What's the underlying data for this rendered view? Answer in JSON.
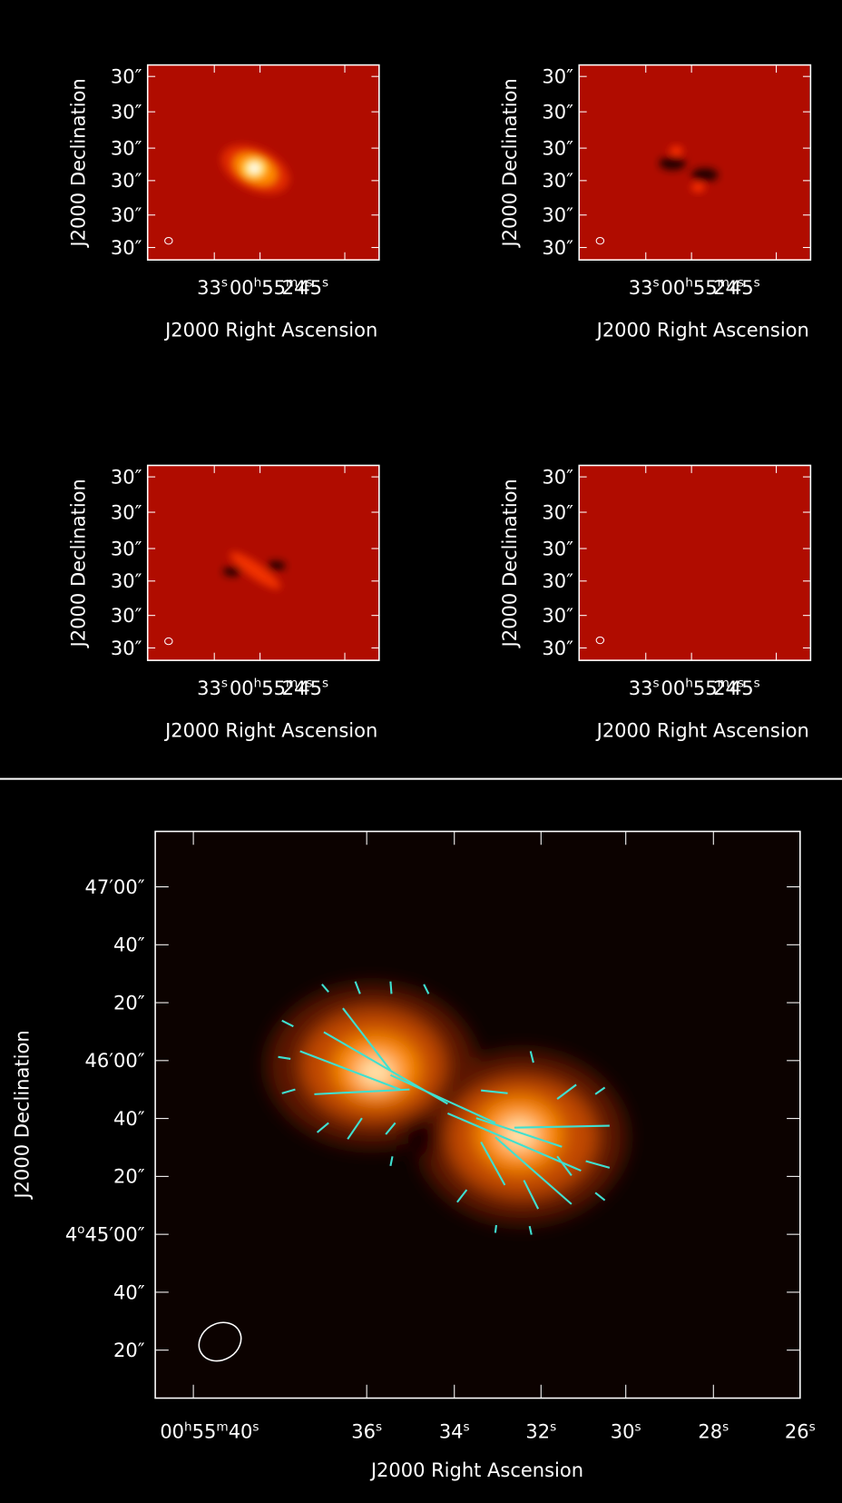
{
  "panels": [
    {
      "y_label": "J2000 Declination",
      "x_label": "J2000 Right Ascension",
      "y_ticks": [
        "30″",
        "30″",
        "30″",
        "30″",
        "30″",
        "30″"
      ],
      "x_ticks": [
        [
          "00",
          "h",
          "55",
          "m",
          "45",
          "s"
        ],
        [
          "33",
          "s"
        ],
        [
          "24",
          "s"
        ]
      ]
    },
    {
      "y_label": "J2000 Declination",
      "x_label": "J2000 Right Ascension",
      "y_ticks": [
        "30″",
        "30″",
        "30″",
        "30″",
        "30″",
        "30″"
      ],
      "x_ticks": [
        [
          "00",
          "h",
          "55",
          "m",
          "45",
          "s"
        ],
        [
          "33",
          "s"
        ],
        [
          "24",
          "s"
        ]
      ]
    },
    {
      "y_label": "J2000 Declination",
      "x_label": "J2000 Right Ascension",
      "y_ticks": [
        "30″",
        "30″",
        "30″",
        "30″",
        "30″",
        "30″"
      ],
      "x_ticks": [
        [
          "00",
          "h",
          "55",
          "m",
          "45",
          "s"
        ],
        [
          "33",
          "s"
        ],
        [
          "24",
          "s"
        ]
      ]
    },
    {
      "y_label": "J2000 Declination",
      "x_label": "J2000 Right Ascension",
      "y_ticks": [
        "30″",
        "30″",
        "30″",
        "30″",
        "30″",
        "30″"
      ],
      "x_ticks": [
        [
          "00",
          "h",
          "55",
          "m",
          "45",
          "s"
        ],
        [
          "33",
          "s"
        ],
        [
          "24",
          "s"
        ]
      ]
    }
  ],
  "main": {
    "y_label": "J2000 Declination",
    "x_label": "J2000 Right Ascension",
    "y_ticks": [
      [
        "47′00″"
      ],
      [
        "40″"
      ],
      [
        "20″"
      ],
      [
        "46′00″"
      ],
      [
        "40″"
      ],
      [
        "20″"
      ],
      [
        "4",
        "o",
        "45′00″"
      ],
      [
        "40″"
      ],
      [
        "20″"
      ]
    ],
    "x_ticks": [
      [
        "00",
        "h",
        "55",
        "m",
        "40",
        "s"
      ],
      [
        "36",
        "s"
      ],
      [
        "34",
        "s"
      ],
      [
        "32",
        "s"
      ],
      [
        "30",
        "s"
      ],
      [
        "28",
        "s"
      ],
      [
        "26",
        "s"
      ]
    ]
  }
}
